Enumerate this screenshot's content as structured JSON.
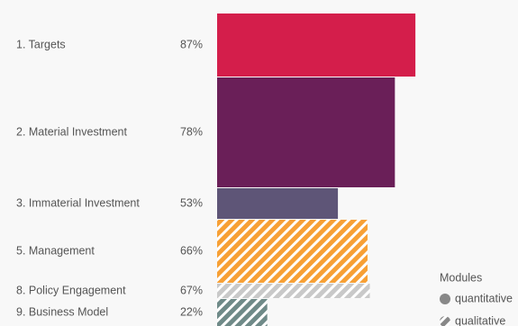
{
  "chart_data": {
    "type": "bar",
    "categories": [
      "1. Targets",
      "2. Material Investment",
      "3. Immaterial Investment",
      "5. Management",
      "8. Policy Engagement",
      "9. Business Model"
    ],
    "values": [
      87,
      78,
      53,
      66,
      67,
      22
    ],
    "value_labels": [
      "87%",
      "78%",
      "53%",
      "66%",
      "67%",
      "22%"
    ],
    "weights": [
      70,
      122,
      34,
      70,
      16,
      30
    ],
    "colors": [
      "#d41e4b",
      "#6a1f58",
      "#5e5577",
      "#f7a035",
      "#c9c9c9",
      "#6f8a88"
    ],
    "hatched": [
      false,
      false,
      false,
      true,
      true,
      true
    ],
    "xlim": [
      0,
      100
    ],
    "legend": {
      "title": "Modules",
      "entries": [
        "quantitative",
        "qualitative"
      ],
      "color": "#888888"
    }
  }
}
